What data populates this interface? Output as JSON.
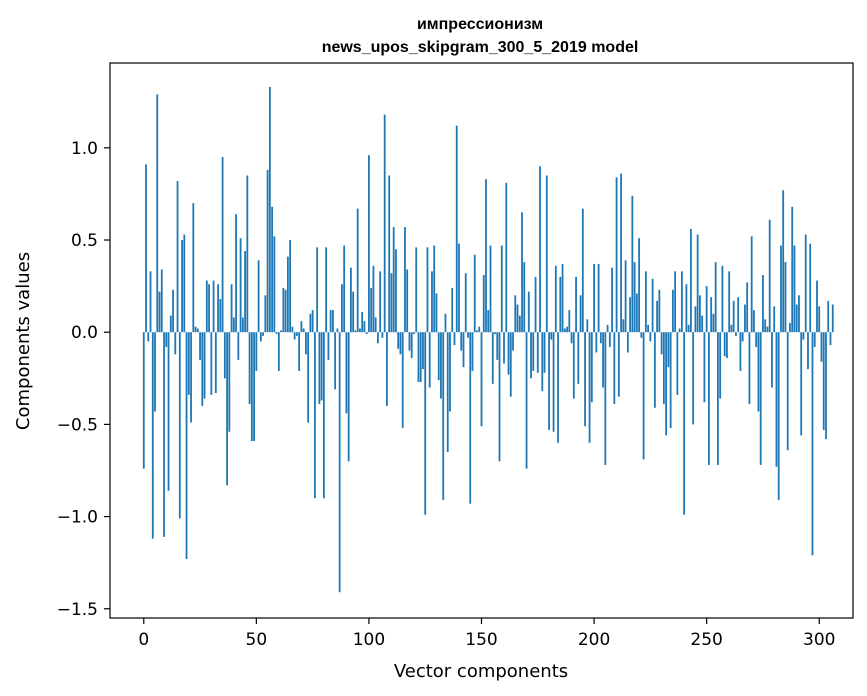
{
  "chart_data": {
    "type": "bar",
    "title": "импрессионизм",
    "subtitle": "news_upos_skipgram_300_5_2019 model",
    "xlabel": "Vector components",
    "ylabel": "Components values",
    "xlim": [
      -15,
      315
    ],
    "ylim": [
      -1.55,
      1.46
    ],
    "xticks": [
      0,
      50,
      100,
      150,
      200,
      250,
      300
    ],
    "yticks": [
      -1.5,
      -1.0,
      -0.5,
      0.0,
      0.5,
      1.0
    ],
    "ytick_labels": [
      "−1.5",
      "−1.0",
      "−0.5",
      "0.0",
      "0.5",
      "1.0"
    ],
    "grid": false,
    "bar_color": "#1f77b4",
    "values": [
      -0.74,
      0.91,
      -0.05,
      0.33,
      -1.12,
      -0.43,
      1.29,
      0.22,
      0.34,
      -1.11,
      -0.08,
      -0.86,
      0.09,
      0.23,
      -0.12,
      0.82,
      -1.01,
      0.5,
      0.53,
      -1.23,
      -0.34,
      -0.49,
      0.7,
      0.03,
      0.02,
      -0.15,
      -0.4,
      -0.36,
      0.28,
      0.26,
      -0.34,
      0.28,
      -0.33,
      0.26,
      0.18,
      0.95,
      -0.25,
      -0.83,
      -0.54,
      0.26,
      0.08,
      0.64,
      -0.15,
      0.51,
      0.08,
      0.44,
      0.85,
      -0.39,
      -0.59,
      -0.59,
      -0.21,
      0.39,
      -0.05,
      -0.02,
      0.2,
      0.88,
      1.33,
      0.68,
      0.52,
      -0.01,
      -0.21,
      0.01,
      0.24,
      0.23,
      0.41,
      0.5,
      0.03,
      -0.04,
      -0.02,
      -0.21,
      0.06,
      0.02,
      -0.12,
      -0.49,
      0.1,
      0.12,
      -0.9,
      0.46,
      -0.39,
      -0.37,
      -0.9,
      0.46,
      -0.15,
      0.12,
      0.12,
      -0.31,
      0.02,
      -1.41,
      0.26,
      0.47,
      -0.44,
      -0.7,
      0.35,
      0.22,
      0.01,
      0.67,
      0.02,
      0.11,
      0.06,
      -0.01,
      0.96,
      0.24,
      0.36,
      0.08,
      -0.06,
      0.33,
      -0.03,
      1.18,
      -0.4,
      0.85,
      0.32,
      0.57,
      0.45,
      -0.09,
      -0.12,
      -0.52,
      0.57,
      0.34,
      -0.1,
      -0.14,
      -0.01,
      0.46,
      -0.27,
      -0.27,
      -0.2,
      -0.99,
      0.46,
      -0.3,
      0.33,
      0.47,
      0.21,
      -0.26,
      -0.36,
      -0.91,
      0.1,
      -0.65,
      -0.43,
      0.24,
      -0.07,
      1.12,
      0.48,
      -0.1,
      -0.19,
      0.32,
      -0.03,
      -0.93,
      -0.21,
      0.42,
      0.01,
      0.03,
      -0.51,
      0.31,
      0.83,
      0.12,
      0.47,
      -0.28,
      -0.01,
      -0.15,
      -0.7,
      0.47,
      -0.17,
      0.81,
      -0.23,
      -0.35,
      -0.1,
      0.2,
      0.15,
      0.09,
      0.65,
      0.38,
      -0.74,
      0.22,
      -0.25,
      -0.21,
      0.3,
      -0.22,
      0.9,
      -0.32,
      -0.22,
      0.85,
      -0.53,
      -0.04,
      -0.54,
      0.36,
      -0.6,
      0.3,
      0.37,
      0.02,
      0.03,
      0.12,
      -0.06,
      -0.36,
      0.3,
      -0.28,
      0.2,
      0.67,
      -0.51,
      0.07,
      -0.6,
      -0.38,
      0.37,
      -0.11,
      0.37,
      -0.06,
      -0.3,
      -0.72,
      0.04,
      -0.08,
      0.35,
      -0.39,
      0.84,
      -0.35,
      0.86,
      0.07,
      0.39,
      -0.11,
      0.19,
      0.74,
      0.38,
      0.21,
      0.51,
      -0.03,
      -0.69,
      0.33,
      0.04,
      -0.05,
      0.29,
      -0.41,
      0.17,
      0.23,
      -0.12,
      -0.39,
      -0.56,
      -0.19,
      -0.52,
      0.23,
      0.33,
      -0.34,
      0.02,
      0.33,
      -0.99,
      0.26,
      0.04,
      0.56,
      -0.5,
      0.14,
      0.53,
      0.2,
      0.09,
      -0.38,
      0.25,
      -0.72,
      0.19,
      0.1,
      0.38,
      -0.72,
      -0.36,
      0.36,
      -0.13,
      -0.14,
      0.33,
      0.04,
      0.17,
      -0.02,
      0.19,
      -0.21,
      -0.05,
      0.15,
      0.27,
      -0.39,
      0.52,
      0.12,
      -0.08,
      -0.43,
      -0.72,
      0.31,
      0.07,
      0.03,
      0.61,
      -0.3,
      0.14,
      -0.73,
      -0.91,
      0.47,
      0.77,
      0.38,
      -0.64,
      0.05,
      0.68,
      0.47,
      0.15,
      0.2,
      -0.56,
      -0.04,
      0.53,
      -0.2,
      0.48,
      -1.21,
      -0.08,
      0.28,
      0.14,
      -0.16,
      -0.53,
      -0.58,
      0.17,
      -0.07,
      0.15
    ]
  }
}
